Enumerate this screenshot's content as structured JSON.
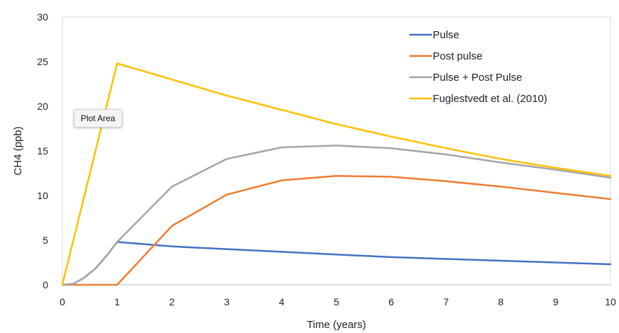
{
  "chart_data": {
    "type": "line",
    "xlabel": "Time (years)",
    "ylabel": "CH4 (ppb)",
    "xlim": [
      0,
      10
    ],
    "ylim": [
      0,
      30
    ],
    "x_ticks": [
      "0",
      "1",
      "2",
      "3",
      "4",
      "5",
      "6",
      "7",
      "8",
      "9",
      "10"
    ],
    "y_ticks": [
      "0",
      "5",
      "10",
      "15",
      "20",
      "25",
      "30"
    ],
    "grid": false,
    "legend_position": "top-right",
    "series": [
      {
        "name": "Pulse",
        "color": "#4472C4",
        "points": [
          [
            0,
            0
          ],
          [
            0.2,
            0.1
          ],
          [
            0.4,
            0.8
          ],
          [
            0.6,
            1.8
          ],
          [
            0.8,
            3.2
          ],
          [
            1,
            4.8
          ],
          [
            2,
            4.3
          ],
          [
            3,
            4.0
          ],
          [
            4,
            3.7
          ],
          [
            5,
            3.4
          ],
          [
            6,
            3.1
          ],
          [
            7,
            2.9
          ],
          [
            8,
            2.7
          ],
          [
            9,
            2.5
          ],
          [
            10,
            2.3
          ]
        ]
      },
      {
        "name": "Post pulse",
        "color": "#ED7D31",
        "points": [
          [
            0,
            0
          ],
          [
            1,
            0
          ],
          [
            2,
            6.6
          ],
          [
            3,
            10.1
          ],
          [
            4,
            11.7
          ],
          [
            5,
            12.2
          ],
          [
            6,
            12.1
          ],
          [
            7,
            11.6
          ],
          [
            8,
            11.0
          ],
          [
            9,
            10.3
          ],
          [
            10,
            9.6
          ]
        ]
      },
      {
        "name": "Pulse + Post Pulse",
        "color": "#A5A5A5",
        "points": [
          [
            0,
            0
          ],
          [
            0.2,
            0.1
          ],
          [
            0.4,
            0.8
          ],
          [
            0.6,
            1.8
          ],
          [
            0.8,
            3.2
          ],
          [
            1,
            4.8
          ],
          [
            2,
            11.0
          ],
          [
            3,
            14.1
          ],
          [
            4,
            15.4
          ],
          [
            5,
            15.6
          ],
          [
            6,
            15.3
          ],
          [
            7,
            14.6
          ],
          [
            8,
            13.7
          ],
          [
            9,
            12.9
          ],
          [
            10,
            12.0
          ]
        ]
      },
      {
        "name": "Fuglestvedt et al. (2010)",
        "color": "#FFC000",
        "points": [
          [
            0,
            0
          ],
          [
            1,
            24.8
          ],
          [
            2,
            23.0
          ],
          [
            3,
            21.2
          ],
          [
            4,
            19.6
          ],
          [
            5,
            18.0
          ],
          [
            6,
            16.6
          ],
          [
            7,
            15.3
          ],
          [
            8,
            14.1
          ],
          [
            9,
            13.1
          ],
          [
            10,
            12.2
          ]
        ]
      }
    ]
  },
  "tooltip": {
    "text": "Plot Area"
  }
}
